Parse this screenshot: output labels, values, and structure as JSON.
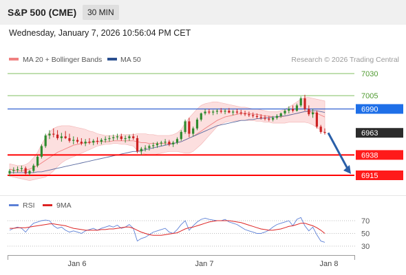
{
  "header": {
    "symbol": "S&P 500 (CME)",
    "timeframe": "30 MIN"
  },
  "datetime": "Wednesday, January 7, 2026 10:56:04 PM CET",
  "legend": {
    "ma20": {
      "label": "MA 20 + Bollinger Bands",
      "color": "#f08080"
    },
    "ma50": {
      "label": "MA 50",
      "color": "#2a4f8f"
    },
    "credit": "Research © 2026 Trading Central"
  },
  "colors": {
    "up": "#2e8b2e",
    "down": "#cc2222",
    "resistance": "#7fbf5f",
    "support": "#ff0000",
    "pivot": "#3060d0",
    "forecast": "#2a5fa8",
    "rsi": "#5b7fd6",
    "rsi_ma": "#dd2222"
  },
  "chart_data": [
    {
      "type": "candlestick",
      "ylim": [
        6895,
        7050
      ],
      "x_ticks": [
        "Jan 6",
        "Jan 7",
        "Jan 8"
      ],
      "levels": [
        {
          "value": 7030,
          "label": "7030",
          "kind": "resistance"
        },
        {
          "value": 7005,
          "label": "7005",
          "kind": "resistance"
        },
        {
          "value": 6990,
          "label": "6990",
          "kind": "pivot"
        },
        {
          "value": 6963,
          "label": "6963",
          "kind": "last"
        },
        {
          "value": 6938,
          "label": "6938",
          "kind": "support"
        },
        {
          "value": 6915,
          "label": "6915",
          "kind": "support"
        }
      ],
      "candles": [
        [
          6917,
          6922,
          6914,
          6920
        ],
        [
          6920,
          6924,
          6917,
          6921
        ],
        [
          6921,
          6925,
          6918,
          6922
        ],
        [
          6922,
          6926,
          6919,
          6923
        ],
        [
          6923,
          6925,
          6916,
          6917
        ],
        [
          6917,
          6921,
          6915,
          6920
        ],
        [
          6920,
          6928,
          6918,
          6926
        ],
        [
          6926,
          6938,
          6924,
          6936
        ],
        [
          6936,
          6950,
          6934,
          6948
        ],
        [
          6948,
          6962,
          6946,
          6960
        ],
        [
          6960,
          6966,
          6956,
          6962
        ],
        [
          6962,
          6968,
          6958,
          6961
        ],
        [
          6961,
          6966,
          6955,
          6957
        ],
        [
          6957,
          6963,
          6953,
          6959
        ],
        [
          6959,
          6965,
          6956,
          6957
        ],
        [
          6957,
          6962,
          6952,
          6954
        ],
        [
          6954,
          6959,
          6950,
          6955
        ],
        [
          6955,
          6958,
          6951,
          6953
        ],
        [
          6953,
          6957,
          6949,
          6951
        ],
        [
          6951,
          6956,
          6948,
          6953
        ],
        [
          6953,
          6957,
          6950,
          6952
        ],
        [
          6952,
          6956,
          6949,
          6954
        ],
        [
          6954,
          6958,
          6950,
          6953
        ],
        [
          6953,
          6957,
          6950,
          6955
        ],
        [
          6955,
          6959,
          6952,
          6956
        ],
        [
          6956,
          6960,
          6953,
          6957
        ],
        [
          6957,
          6961,
          6954,
          6958
        ],
        [
          6958,
          6962,
          6955,
          6959
        ],
        [
          6959,
          6962,
          6954,
          6956
        ],
        [
          6956,
          6960,
          6952,
          6957
        ],
        [
          6957,
          6961,
          6954,
          6959
        ],
        [
          6959,
          6962,
          6955,
          6957
        ],
        [
          6957,
          6960,
          6940,
          6942
        ],
        [
          6942,
          6947,
          6938,
          6945
        ],
        [
          6945,
          6949,
          6942,
          6946
        ],
        [
          6946,
          6950,
          6943,
          6948
        ],
        [
          6948,
          6952,
          6945,
          6949
        ],
        [
          6949,
          6953,
          6946,
          6951
        ],
        [
          6951,
          6954,
          6948,
          6952
        ],
        [
          6952,
          6956,
          6949,
          6953
        ],
        [
          6953,
          6955,
          6948,
          6950
        ],
        [
          6950,
          6954,
          6947,
          6952
        ],
        [
          6952,
          6958,
          6950,
          6956
        ],
        [
          6956,
          6966,
          6954,
          6964
        ],
        [
          6964,
          6978,
          6962,
          6976
        ],
        [
          6976,
          6980,
          6958,
          6962
        ],
        [
          6962,
          6970,
          6959,
          6968
        ],
        [
          6968,
          6980,
          6966,
          6978
        ],
        [
          6978,
          6986,
          6976,
          6985
        ],
        [
          6985,
          6990,
          6983,
          6987
        ],
        [
          6987,
          6990,
          6984,
          6986
        ],
        [
          6986,
          6989,
          6983,
          6987
        ],
        [
          6987,
          6990,
          6984,
          6988
        ],
        [
          6988,
          6991,
          6985,
          6987
        ],
        [
          6987,
          6990,
          6984,
          6988
        ],
        [
          6988,
          6991,
          6985,
          6986
        ],
        [
          6986,
          6989,
          6983,
          6987
        ],
        [
          6987,
          6990,
          6984,
          6986
        ],
        [
          6986,
          6989,
          6983,
          6985
        ],
        [
          6985,
          6988,
          6982,
          6984
        ],
        [
          6984,
          6987,
          6981,
          6983
        ],
        [
          6983,
          6986,
          6980,
          6982
        ],
        [
          6982,
          6985,
          6979,
          6981
        ],
        [
          6981,
          6984,
          6978,
          6980
        ],
        [
          6980,
          6983,
          6977,
          6979
        ],
        [
          6979,
          6982,
          6976,
          6978
        ],
        [
          6978,
          6982,
          6976,
          6980
        ],
        [
          6980,
          6984,
          6978,
          6982
        ],
        [
          6982,
          6986,
          6980,
          6985
        ],
        [
          6985,
          6990,
          6983,
          6988
        ],
        [
          6988,
          6993,
          6985,
          6990
        ],
        [
          6990,
          6994,
          6986,
          6988
        ],
        [
          6988,
          6996,
          6987,
          6994
        ],
        [
          6994,
          7004,
          6992,
          7002
        ],
        [
          7002,
          7006,
          6988,
          6990
        ],
        [
          6990,
          6994,
          6982,
          6984
        ],
        [
          6984,
          6990,
          6980,
          6986
        ],
        [
          6986,
          6988,
          6968,
          6970
        ],
        [
          6970,
          6972,
          6962,
          6964
        ],
        [
          6964,
          6968,
          6961,
          6963
        ]
      ],
      "ma20": [
        6922,
        6921,
        6920,
        6920,
        6921,
        6922,
        6924,
        6926,
        6929,
        6932,
        6935,
        6938,
        6941,
        6943,
        6945,
        6947,
        6949,
        6950,
        6951,
        6952,
        6952,
        6953,
        6953,
        6953,
        6953,
        6953,
        6954,
        6954,
        6954,
        6954,
        6954,
        6954,
        6953,
        6952,
        6952,
        6951,
        6951,
        6951,
        6951,
        6951,
        6951,
        6951,
        6952,
        6953,
        6955,
        6957,
        6959,
        6962,
        6965,
        6968,
        6971,
        6974,
        6977,
        6979,
        6981,
        6982,
        6983,
        6984,
        6985,
        6985,
        6985,
        6984,
        6984,
        6983,
        6982,
        6982,
        6981,
        6981,
        6981,
        6982,
        6983,
        6984,
        6985,
        6986,
        6987,
        6987,
        6986,
        6985,
        6983,
        6981
      ],
      "bb_upper": [
        6928,
        6927,
        6926,
        6926,
        6927,
        6930,
        6935,
        6941,
        6950,
        6958,
        6964,
        6968,
        6970,
        6971,
        6971,
        6971,
        6970,
        6969,
        6968,
        6967,
        6965,
        6964,
        6962,
        6961,
        6960,
        6960,
        6960,
        6960,
        6961,
        6961,
        6961,
        6961,
        6962,
        6962,
        6962,
        6961,
        6961,
        6960,
        6960,
        6960,
        6960,
        6961,
        6963,
        6967,
        6974,
        6980,
        6985,
        6990,
        6994,
        6996,
        6997,
        6998,
        6998,
        6997,
        6996,
        6995,
        6994,
        6993,
        6992,
        6992,
        6991,
        6990,
        6990,
        6989,
        6988,
        6987,
        6987,
        6987,
        6988,
        6990,
        6992,
        6995,
        6998,
        7001,
        7003,
        7003,
        7002,
        7001,
        7000,
        6999
      ],
      "bb_lower": [
        6914,
        6913,
        6912,
        6911,
        6910,
        6909,
        6910,
        6911,
        6912,
        6913,
        6916,
        6920,
        6925,
        6929,
        6932,
        6934,
        6936,
        6938,
        6940,
        6942,
        6944,
        6946,
        6948,
        6949,
        6950,
        6950,
        6951,
        6951,
        6950,
        6950,
        6949,
        6948,
        6943,
        6940,
        6939,
        6938,
        6938,
        6939,
        6940,
        6941,
        6942,
        6942,
        6942,
        6941,
        6940,
        6940,
        6942,
        6946,
        6950,
        6955,
        6960,
        6965,
        6970,
        6973,
        6975,
        6976,
        6976,
        6977,
        6977,
        6977,
        6977,
        6977,
        6976,
        6976,
        6975,
        6975,
        6974,
        6974,
        6974,
        6974,
        6975,
        6975,
        6975,
        6975,
        6975,
        6974,
        6972,
        6969,
        6966,
        6963
      ],
      "ma50": [
        6918,
        6918,
        6918,
        6918,
        6918,
        6918,
        6918,
        6919,
        6919,
        6920,
        6921,
        6922,
        6923,
        6924,
        6925,
        6926,
        6927,
        6928,
        6929,
        6930,
        6931,
        6932,
        6933,
        6934,
        6935,
        6936,
        6937,
        6938,
        6939,
        6940,
        6941,
        6942,
        6942,
        6943,
        6944,
        6945,
        6946,
        6947,
        6948,
        6949,
        6950,
        6951,
        6952,
        6953,
        6955,
        6957,
        6959,
        6961,
        6963,
        6965,
        6967,
        6969,
        6971,
        6972,
        6973,
        6974,
        6975,
        6976,
        6977,
        6977,
        6978,
        6978,
        6979,
        6979,
        6980,
        6980,
        6981,
        6981,
        6982,
        6982,
        6983,
        6984,
        6985,
        6986,
        6987,
        6988,
        6988,
        6988,
        6987,
        6986
      ],
      "forecast": {
        "from": 6963,
        "to": 6915
      }
    },
    {
      "type": "line",
      "legend": [
        "RSI",
        "9MA"
      ],
      "ylim": [
        20,
        80
      ],
      "y_ticks": [
        70,
        50,
        30
      ],
      "rsi": [
        55,
        58,
        60,
        58,
        52,
        60,
        66,
        68,
        70,
        71,
        70,
        62,
        58,
        60,
        55,
        52,
        54,
        52,
        50,
        54,
        56,
        58,
        55,
        58,
        60,
        62,
        60,
        63,
        58,
        60,
        64,
        58,
        38,
        42,
        44,
        48,
        52,
        54,
        56,
        58,
        52,
        50,
        56,
        64,
        70,
        55,
        62,
        68,
        72,
        74,
        72,
        71,
        70,
        70,
        72,
        68,
        66,
        64,
        60,
        56,
        54,
        52,
        50,
        50,
        52,
        55,
        60,
        64,
        66,
        68,
        70,
        62,
        72,
        75,
        62,
        54,
        60,
        48,
        38,
        36
      ],
      "ma9": [
        58,
        58,
        59,
        59,
        59,
        60,
        61,
        62,
        63,
        64,
        65,
        65,
        64,
        63,
        62,
        60,
        58,
        57,
        56,
        55,
        55,
        55,
        55,
        56,
        56,
        57,
        57,
        58,
        59,
        60,
        60,
        58,
        55,
        52,
        50,
        48,
        47,
        47,
        47,
        48,
        49,
        50,
        51,
        54,
        57,
        59,
        60,
        62,
        64,
        66,
        68,
        69,
        70,
        70,
        70,
        70,
        69,
        68,
        67,
        65,
        63,
        61,
        59,
        57,
        56,
        55,
        55,
        56,
        57,
        59,
        61,
        62,
        64,
        66,
        66,
        64,
        62,
        59,
        55,
        50
      ]
    }
  ]
}
